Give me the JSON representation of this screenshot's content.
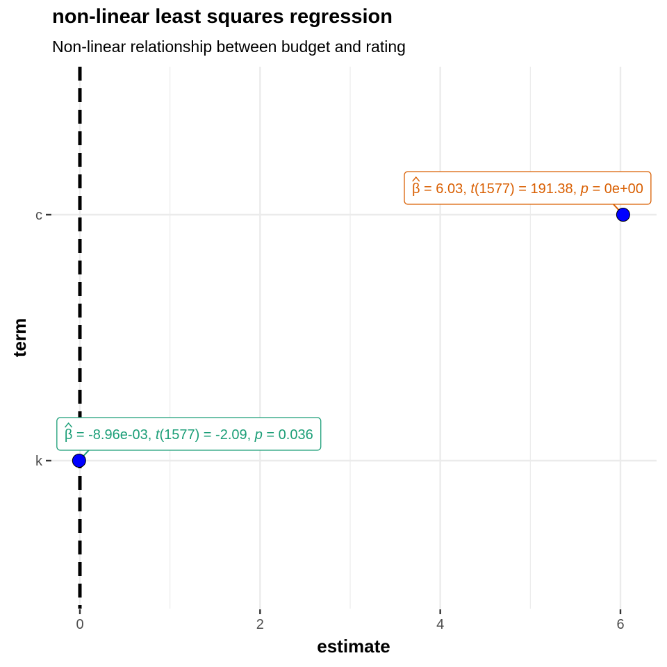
{
  "chart_data": {
    "type": "scatter",
    "title": "non-linear least squares regression",
    "subtitle": "Non-linear relationship between budget and rating",
    "xlabel": "estimate",
    "ylabel": "term",
    "xlim": [
      -0.2,
      6.4
    ],
    "x_ticks": [
      0,
      2,
      4,
      6
    ],
    "x_tick_labels": [
      "0",
      "2",
      "4",
      "6"
    ],
    "categories": [
      "k",
      "c"
    ],
    "reference_line": {
      "x": 0,
      "style": "dashed",
      "color": "#000000"
    },
    "grid": true,
    "point_color": "#0000ff",
    "points": [
      {
        "term": "k",
        "estimate": -0.00896,
        "label": {
          "beta": "-8.96e-03",
          "df": "1577",
          "t": "-2.09",
          "p": "0.036"
        },
        "label_color": "#1b9e77"
      },
      {
        "term": "c",
        "estimate": 6.03,
        "label": {
          "beta": "6.03",
          "df": "1577",
          "t": "191.38",
          "p": "0e+00"
        },
        "label_color": "#d95f02"
      }
    ]
  }
}
